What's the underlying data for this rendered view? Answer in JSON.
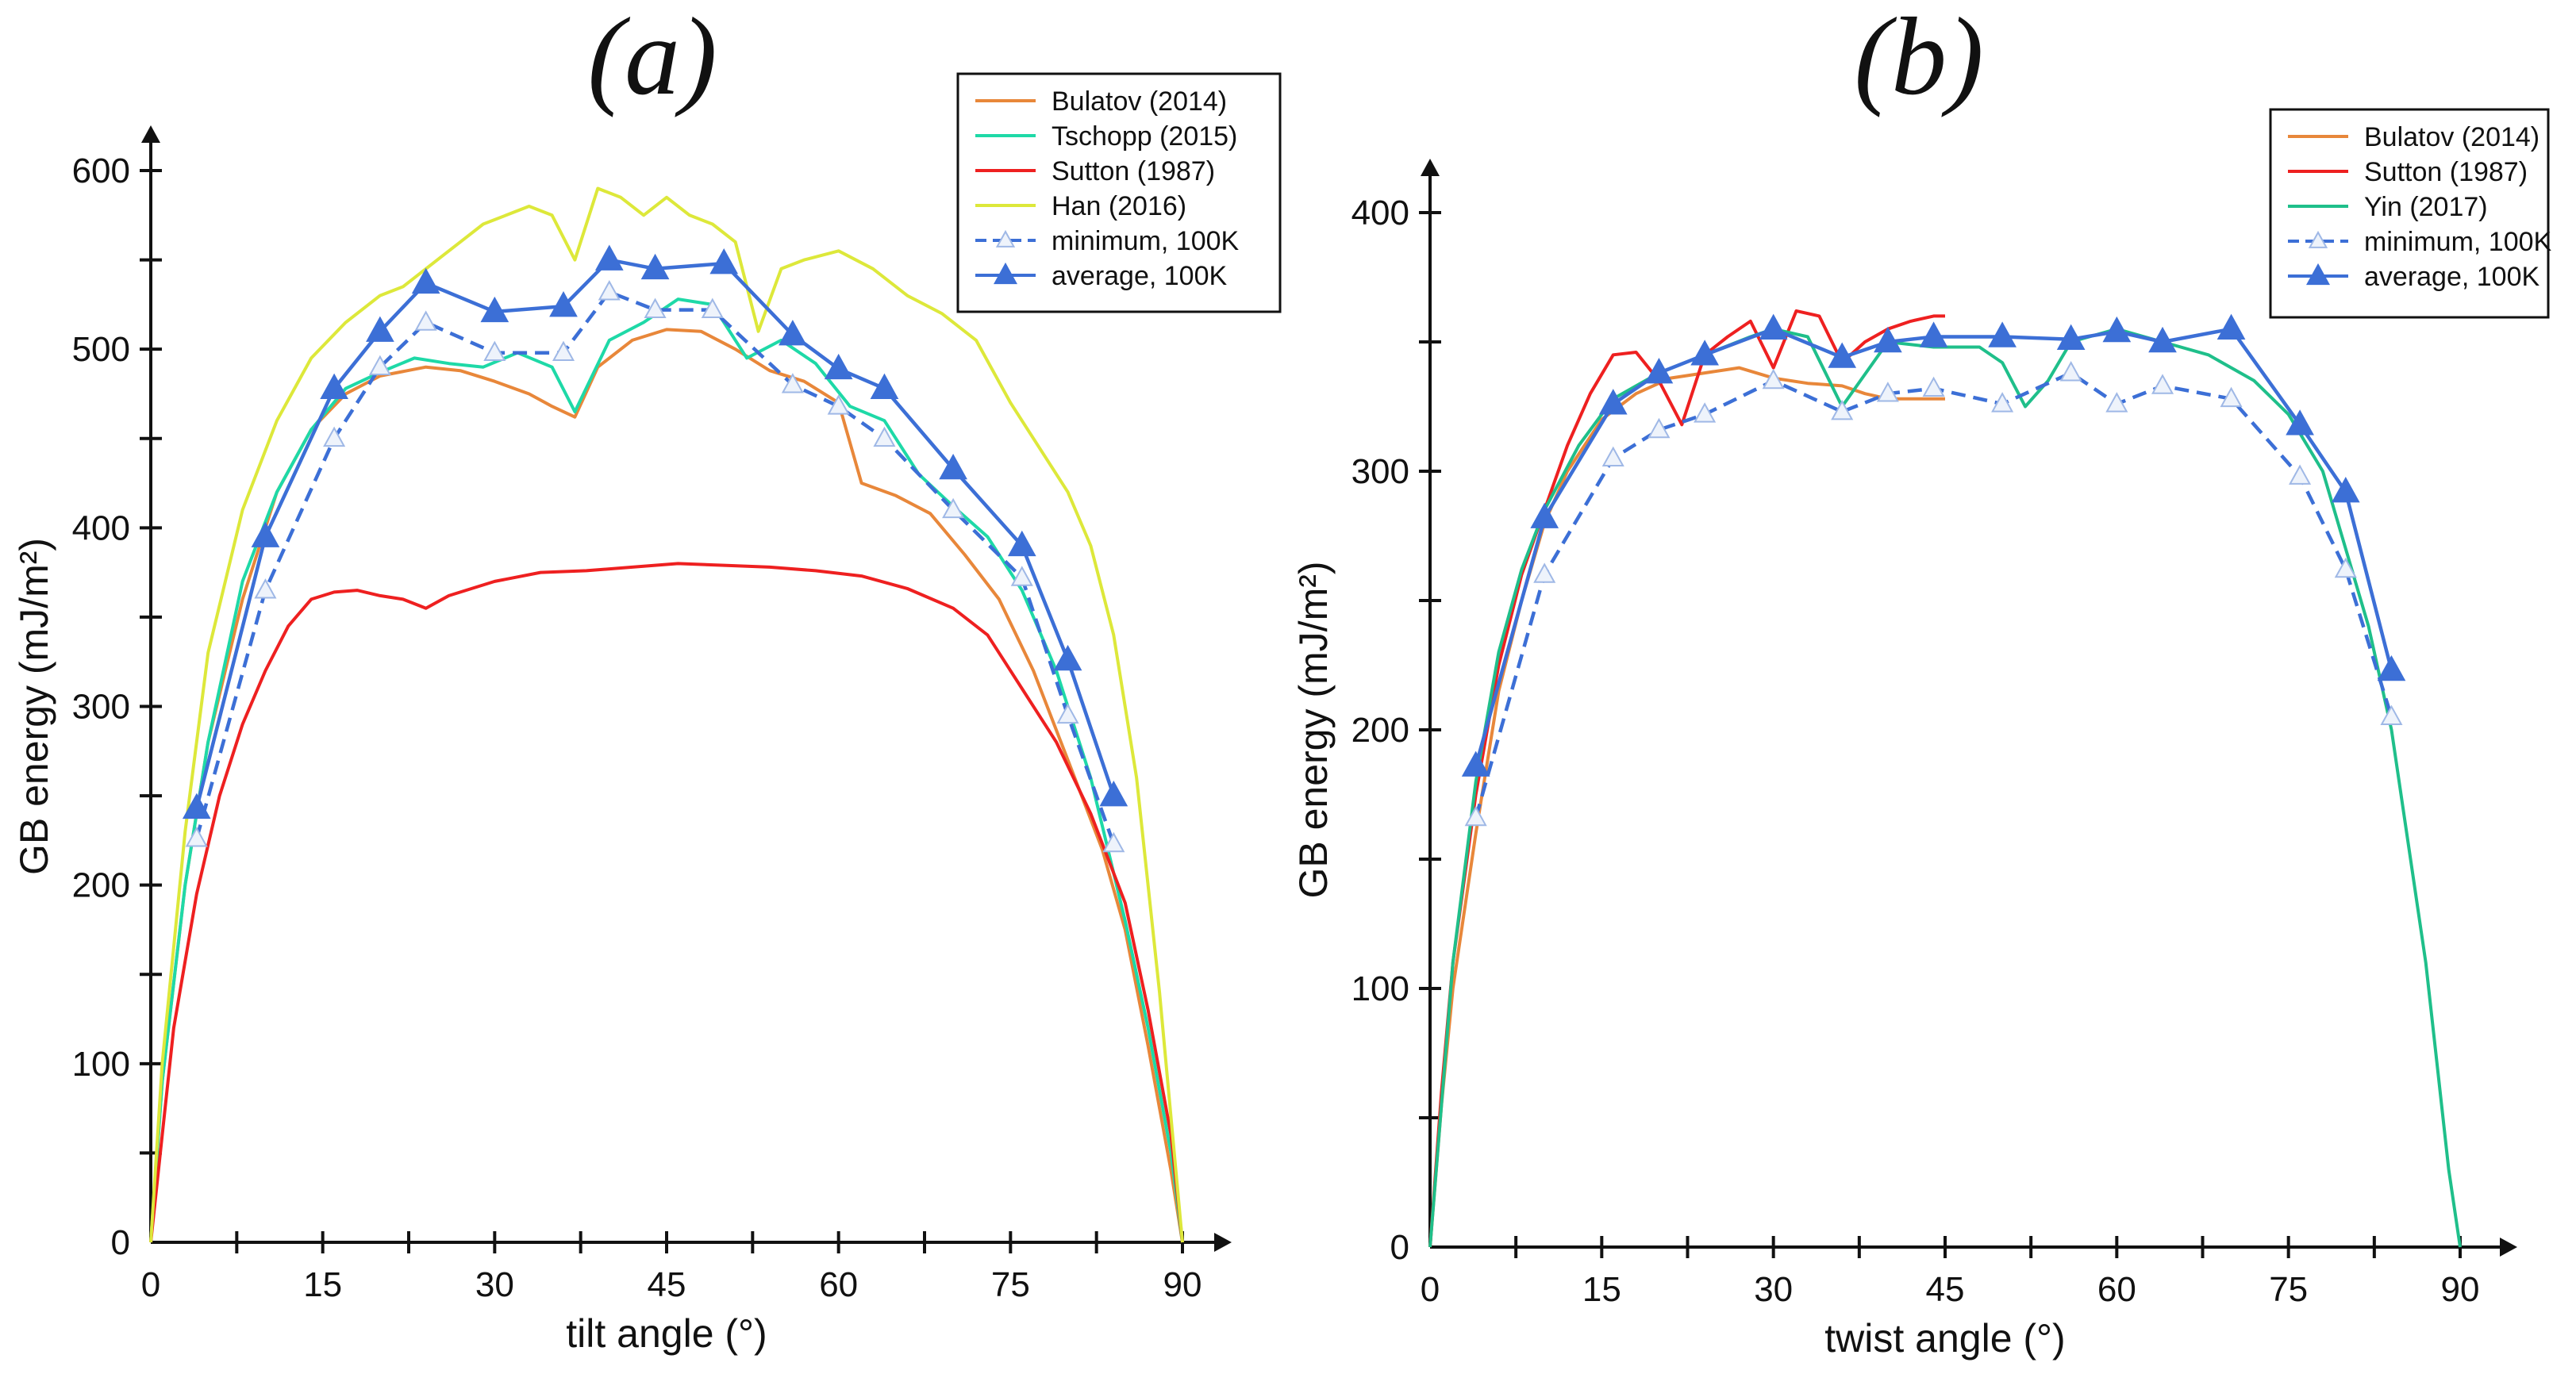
{
  "chart_data": [
    {
      "type": "line",
      "panel_label": "(a)",
      "xlabel": "tilt angle (°)",
      "ylabel": "GB energy (mJ/m²)",
      "xlim": [
        0,
        90
      ],
      "ylim": [
        0,
        600
      ],
      "xticks": [
        0,
        15,
        30,
        45,
        60,
        75,
        90
      ],
      "yticks": [
        0,
        100,
        200,
        300,
        400,
        500,
        600
      ],
      "legend_position": "top-right",
      "series": [
        {
          "name": "Bulatov (2014)",
          "color": "#e8873a",
          "style": "solid",
          "marker": "none",
          "x": [
            0,
            1,
            3,
            5,
            8,
            11,
            14,
            17,
            20,
            24,
            27,
            30,
            33,
            35,
            37,
            39,
            42,
            45,
            48,
            51,
            54,
            57,
            60,
            62,
            65,
            68,
            71,
            74,
            77,
            80,
            83,
            85,
            87,
            89,
            90
          ],
          "y": [
            0,
            90,
            200,
            280,
            360,
            420,
            455,
            475,
            485,
            490,
            488,
            482,
            475,
            468,
            462,
            490,
            505,
            511,
            510,
            500,
            488,
            482,
            470,
            425,
            418,
            408,
            385,
            360,
            320,
            270,
            220,
            175,
            110,
            40,
            0
          ]
        },
        {
          "name": "Tschopp (2015)",
          "color": "#1ed9a7",
          "style": "solid",
          "marker": "none",
          "x": [
            0,
            1,
            3,
            5,
            8,
            11,
            14,
            17,
            20,
            23,
            26,
            29,
            32,
            35,
            37,
            40,
            43,
            46,
            49,
            52,
            55,
            58,
            61,
            64,
            67,
            70,
            73,
            76,
            79,
            82,
            85,
            87,
            89,
            90
          ],
          "y": [
            0,
            90,
            200,
            280,
            370,
            420,
            455,
            478,
            487,
            495,
            492,
            490,
            498,
            490,
            465,
            505,
            515,
            528,
            525,
            495,
            505,
            492,
            468,
            460,
            430,
            412,
            395,
            365,
            320,
            260,
            180,
            120,
            50,
            0
          ]
        },
        {
          "name": "Sutton (1987)",
          "color": "#ee2020",
          "style": "solid",
          "marker": "none",
          "x": [
            0,
            1,
            2,
            4,
            6,
            8,
            10,
            12,
            14,
            16,
            18,
            20,
            22,
            24,
            26,
            28,
            30,
            34,
            38,
            42,
            46,
            50,
            54,
            58,
            62,
            66,
            70,
            73,
            76,
            79,
            82,
            85,
            87,
            89,
            90
          ],
          "y": [
            0,
            60,
            120,
            195,
            250,
            290,
            320,
            345,
            360,
            364,
            365,
            362,
            360,
            355,
            362,
            366,
            370,
            375,
            376,
            378,
            380,
            379,
            378,
            376,
            373,
            366,
            355,
            340,
            310,
            280,
            240,
            190,
            130,
            60,
            0
          ]
        },
        {
          "name": "Han (2016)",
          "color": "#dde83a",
          "style": "solid",
          "marker": "none",
          "x": [
            0,
            1,
            3,
            5,
            8,
            11,
            14,
            17,
            20,
            22,
            25,
            27,
            29,
            31,
            33,
            35,
            37,
            39,
            41,
            43,
            45,
            47,
            49,
            51,
            53,
            55,
            57,
            60,
            63,
            66,
            69,
            72,
            75,
            78,
            80,
            82,
            84,
            86,
            88,
            90
          ],
          "y": [
            0,
            100,
            230,
            330,
            410,
            460,
            495,
            515,
            530,
            535,
            550,
            560,
            570,
            575,
            580,
            575,
            550,
            590,
            585,
            575,
            585,
            575,
            570,
            560,
            510,
            545,
            550,
            555,
            545,
            530,
            520,
            505,
            470,
            440,
            420,
            390,
            340,
            260,
            140,
            0
          ]
        },
        {
          "name": "minimum, 100K",
          "color": "#3c6fd6",
          "style": "dashed",
          "marker": "triangle-hollow",
          "x": [
            4,
            10,
            16,
            20,
            24,
            30,
            36,
            40,
            44,
            49,
            56,
            60,
            64,
            70,
            76,
            80,
            84
          ],
          "y": [
            226,
            365,
            450,
            490,
            515,
            498,
            498,
            532,
            522,
            522,
            480,
            468,
            450,
            410,
            372,
            295,
            223
          ]
        },
        {
          "name": "average, 100K",
          "color": "#3c6fd6",
          "style": "solid",
          "marker": "triangle-filled",
          "x": [
            4,
            10,
            16,
            20,
            24,
            30,
            36,
            40,
            44,
            50,
            56,
            60,
            64,
            70,
            76,
            80,
            84
          ],
          "y": [
            243,
            395,
            478,
            510,
            537,
            521,
            524,
            550,
            545,
            548,
            508,
            489,
            478,
            433,
            390,
            326,
            250
          ]
        }
      ]
    },
    {
      "type": "line",
      "panel_label": "(b)",
      "xlabel": "twist angle (°)",
      "ylabel": "GB energy (mJ/m²)",
      "xlim": [
        0,
        90
      ],
      "ylim": [
        0,
        400
      ],
      "xticks": [
        0,
        15,
        30,
        45,
        60,
        75,
        90
      ],
      "yticks": [
        0,
        100,
        200,
        300,
        400
      ],
      "legend_position": "top-right",
      "series": [
        {
          "name": "Bulatov (2014)",
          "color": "#e8873a",
          "style": "solid",
          "marker": "none",
          "x": [
            0,
            1,
            2,
            4,
            6,
            8,
            10,
            12,
            15,
            18,
            21,
            24,
            27,
            30,
            33,
            36,
            38,
            40,
            42,
            45
          ],
          "y": [
            0,
            55,
            100,
            160,
            215,
            250,
            280,
            300,
            320,
            330,
            336,
            338,
            340,
            336,
            334,
            333,
            330,
            328,
            328,
            328
          ]
        },
        {
          "name": "Sutton (1987)",
          "color": "#ee2020",
          "style": "solid",
          "marker": "none",
          "x": [
            0,
            1,
            2,
            4,
            6,
            8,
            10,
            12,
            14,
            16,
            18,
            20,
            22,
            24,
            26,
            28,
            30,
            32,
            34,
            36,
            38,
            40,
            42,
            44,
            45
          ],
          "y": [
            0,
            60,
            110,
            175,
            225,
            260,
            285,
            310,
            330,
            345,
            346,
            335,
            318,
            345,
            352,
            358,
            340,
            362,
            360,
            342,
            350,
            355,
            358,
            360,
            360
          ]
        },
        {
          "name": "Yin (2017)",
          "color": "#1fbf8a",
          "style": "solid",
          "marker": "none",
          "x": [
            0,
            1,
            2,
            4,
            6,
            8,
            10,
            13,
            16,
            20,
            24,
            28,
            30,
            33,
            36,
            40,
            44,
            48,
            50,
            52,
            54,
            56,
            60,
            64,
            68,
            72,
            75,
            78,
            80,
            82,
            84,
            85,
            86,
            87,
            88,
            89,
            90
          ],
          "y": [
            0,
            55,
            110,
            180,
            230,
            262,
            285,
            310,
            328,
            338,
            345,
            352,
            355,
            352,
            325,
            350,
            348,
            348,
            342,
            325,
            335,
            350,
            355,
            350,
            345,
            335,
            322,
            300,
            270,
            240,
            200,
            170,
            140,
            110,
            70,
            30,
            0
          ]
        },
        {
          "name": "minimum, 100K",
          "color": "#3c6fd6",
          "style": "dashed",
          "marker": "triangle-hollow",
          "x": [
            4,
            10,
            16,
            20,
            24,
            30,
            36,
            40,
            44,
            50,
            56,
            60,
            64,
            70,
            76,
            80,
            84
          ],
          "y": [
            166,
            260,
            305,
            316,
            322,
            335,
            323,
            330,
            332,
            326,
            338,
            326,
            333,
            328,
            298,
            262,
            205
          ]
        },
        {
          "name": "average, 100K",
          "color": "#3c6fd6",
          "style": "solid",
          "marker": "triangle-filled",
          "x": [
            4,
            10,
            16,
            20,
            24,
            30,
            36,
            40,
            44,
            50,
            56,
            60,
            64,
            70,
            76,
            80,
            84
          ],
          "y": [
            186,
            282,
            326,
            338,
            345,
            355,
            344,
            350,
            352,
            352,
            351,
            354,
            350,
            355,
            318,
            292,
            223
          ]
        }
      ]
    }
  ]
}
